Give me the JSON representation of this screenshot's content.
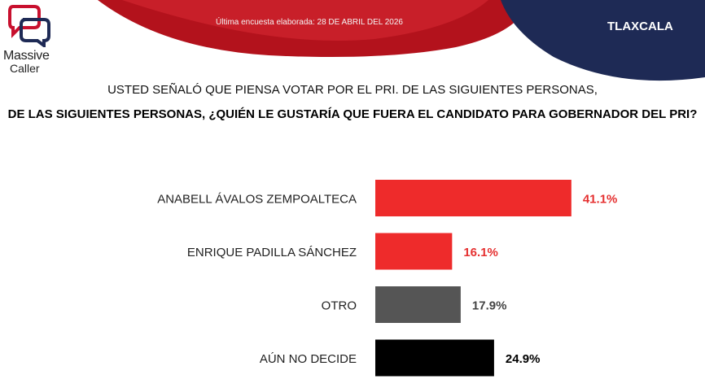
{
  "header": {
    "logo_line1": "Massive",
    "logo_line2": "Caller",
    "date_text": "Última encuesta elaborada: 28 DE ABRIL DEL 2026",
    "region": "TLAXCALA"
  },
  "question": {
    "line1": "USTED SEÑALÓ QUE PIENSA VOTAR POR EL PRI. DE LAS SIGUIENTES PERSONAS,",
    "line2": "DE LAS SIGUIENTES PERSONAS, ¿QUIÉN LE GUSTARÍA QUE FUERA EL CANDIDATO PARA GOBERNADOR DEL PRI?"
  },
  "colors": {
    "banner_red": "#b3121c",
    "banner_navy": "#1e2a55",
    "red": "#ee2b2b",
    "gray": "#555555",
    "black": "#000000"
  },
  "chart_data": {
    "type": "bar",
    "orientation": "horizontal",
    "categories": [
      "ANABELL ÁVALOS ZEMPOALTECA",
      "ENRIQUE PADILLA SÁNCHEZ",
      "OTRO",
      "AÚN NO DECIDE"
    ],
    "values": [
      41.1,
      16.1,
      17.9,
      24.9
    ],
    "value_labels": [
      "41.1%",
      "16.1%",
      "17.9%",
      "24.9%"
    ],
    "bar_colors": [
      "#ee2b2b",
      "#ee2b2b",
      "#555555",
      "#000000"
    ],
    "label_colors": [
      "#e53030",
      "#e53030",
      "#444444",
      "#000000"
    ],
    "xlim": [
      0,
      100
    ],
    "grid": false,
    "legend": "none"
  }
}
